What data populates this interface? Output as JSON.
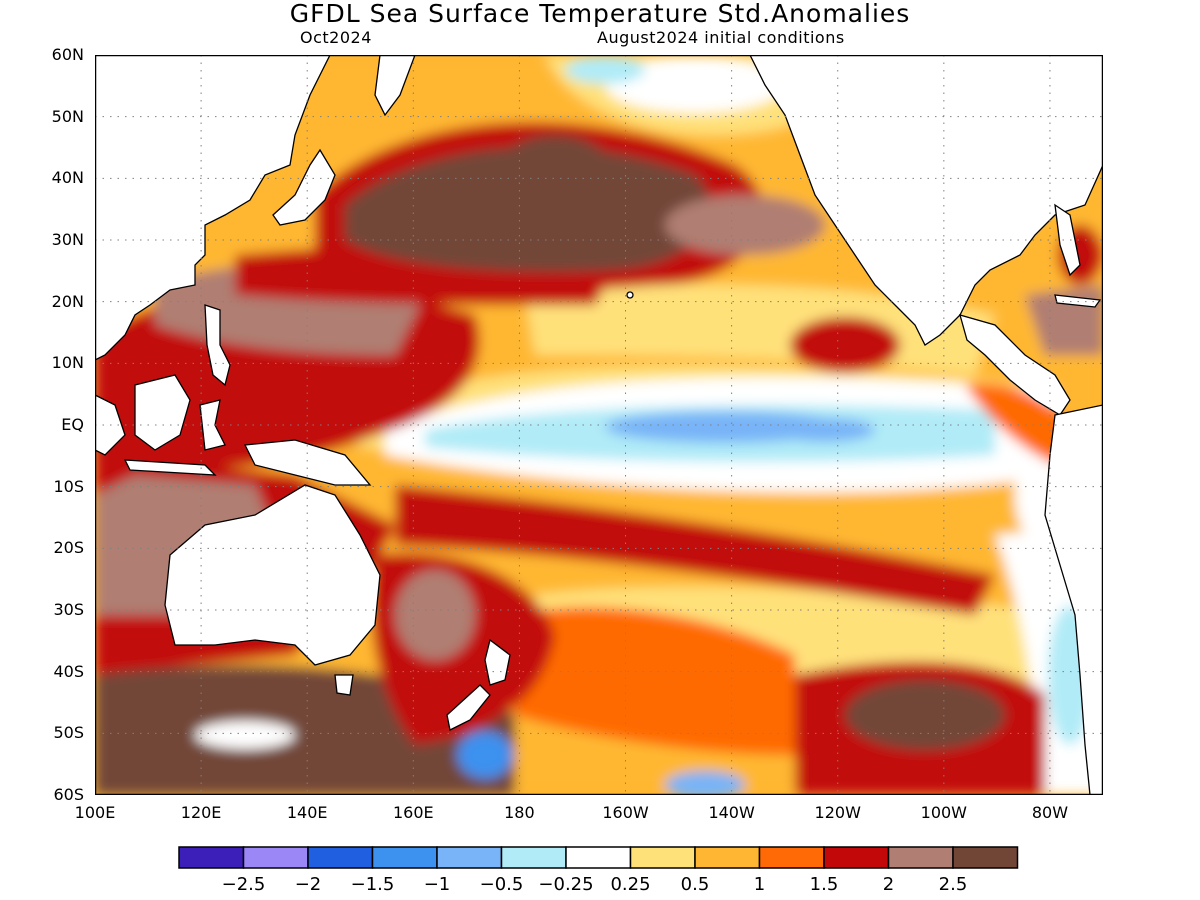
{
  "header": {
    "title": "GFDL Sea Surface Temperature Std.Anomalies",
    "left_subtitle": "Oct2024",
    "right_subtitle": "August2024 initial conditions"
  },
  "axes": {
    "lat_labels": [
      "60N",
      "50N",
      "40N",
      "30N",
      "20N",
      "10N",
      "EQ",
      "10S",
      "20S",
      "30S",
      "40S",
      "50S",
      "60S"
    ],
    "lon_labels": [
      "100E",
      "120E",
      "140E",
      "160E",
      "180",
      "160W",
      "140W",
      "120W",
      "100W",
      "80W"
    ]
  },
  "colorbar": {
    "colors": [
      "#3b1fb8",
      "#9b87f5",
      "#1f5fe0",
      "#3d91ef",
      "#78b4f7",
      "#b0ebf7",
      "#ffffff",
      "#ffe17a",
      "#ffb733",
      "#ff6a06",
      "#c20808",
      "#b07e72",
      "#724637"
    ],
    "labels": [
      "−2.5",
      "−2",
      "−1.5",
      "−1",
      "−0.5",
      "−0.25",
      "0.25",
      "0.5",
      "1",
      "1.5",
      "2",
      "2.5"
    ]
  }
}
